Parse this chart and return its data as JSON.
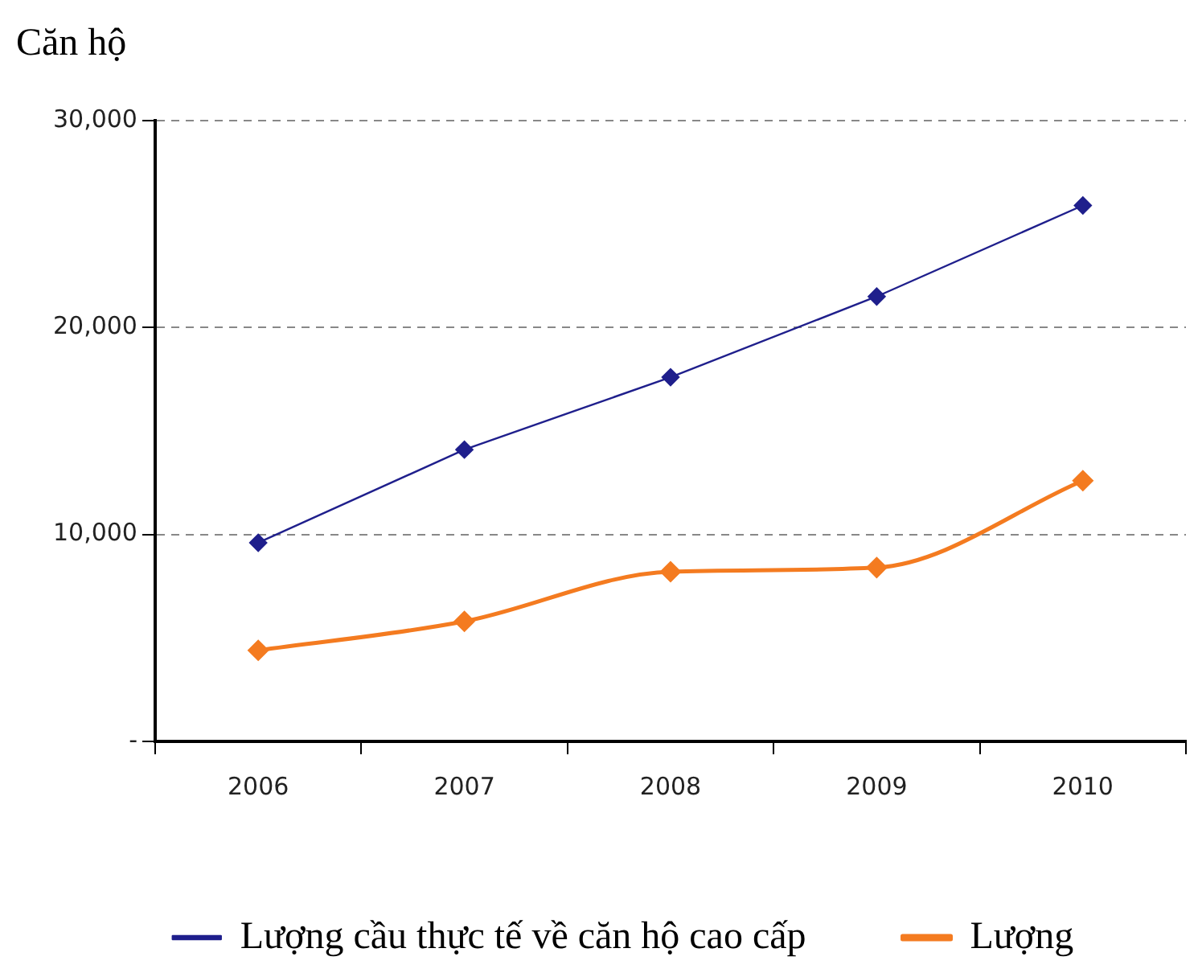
{
  "chart_data": {
    "type": "line",
    "ylabel": "Căn hộ",
    "categories": [
      "2006",
      "2007",
      "2008",
      "2009",
      "2010"
    ],
    "series": [
      {
        "name": "Lượng cầu thực tế về căn hộ cao cấp",
        "color": "#1f1f8c",
        "values": [
          9600,
          14100,
          17600,
          21500,
          25900
        ]
      },
      {
        "name": "Lượng",
        "color": "#f47b20",
        "values": [
          4400,
          5800,
          8200,
          8400,
          12600
        ]
      }
    ],
    "ylim": [
      0,
      30000
    ],
    "yticks": [
      {
        "value": 0,
        "label": "-"
      },
      {
        "value": 10000,
        "label": "10,000"
      },
      {
        "value": 20000,
        "label": "20,000"
      },
      {
        "value": 30000,
        "label": "30,000"
      }
    ],
    "grid": "y",
    "legend": "bottom",
    "marker": "diamond"
  }
}
